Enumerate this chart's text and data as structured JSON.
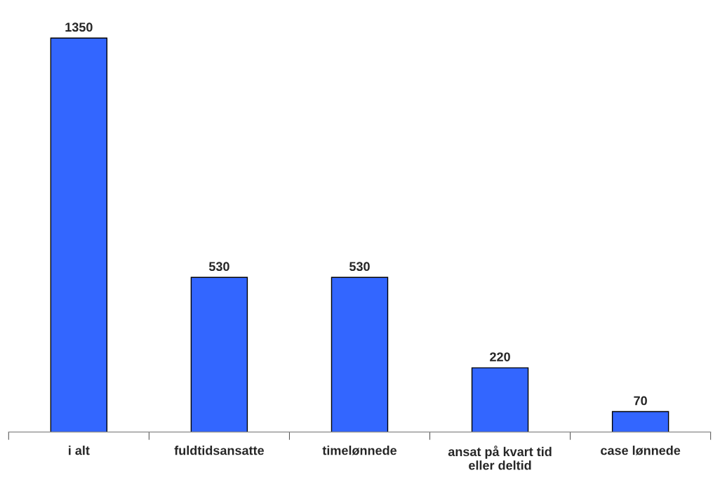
{
  "chart_data": {
    "type": "bar",
    "categories": [
      "i alt",
      "fuldtidsansatte",
      "timelønnede",
      "ansat på kvart tid eller deltid",
      "case lønnede"
    ],
    "values": [
      1350,
      530,
      530,
      220,
      70
    ],
    "color": "#3366ff",
    "data_labels": true,
    "grid": false,
    "legend": false
  }
}
